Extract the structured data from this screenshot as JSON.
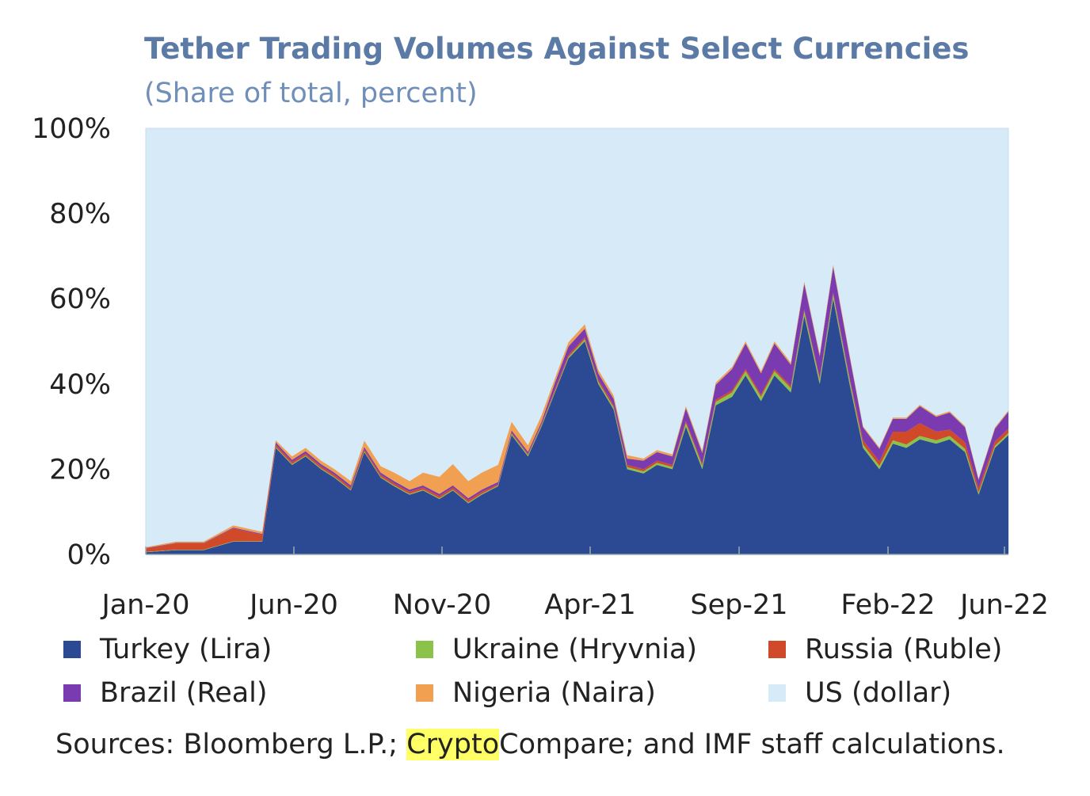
{
  "chart_data": {
    "type": "area",
    "stacked": true,
    "title": "Tether Trading Volumes Against Select Currencies",
    "subtitle": "(Share of total, percent)",
    "ylim": [
      0,
      100
    ],
    "y_ticks": [
      "0%",
      "20%",
      "40%",
      "60%",
      "80%",
      "100%"
    ],
    "x_ticks": [
      "Jan-20",
      "Jun-20",
      "Nov-20",
      "Apr-21",
      "Sep-21",
      "Feb-22",
      "Jun-22"
    ],
    "x": [
      "2020-01-01",
      "2020-02-01",
      "2020-03-01",
      "2020-04-01",
      "2020-05-01",
      "2020-05-15",
      "2020-06-01",
      "2020-06-15",
      "2020-07-01",
      "2020-07-15",
      "2020-08-01",
      "2020-08-15",
      "2020-09-01",
      "2020-09-15",
      "2020-10-01",
      "2020-10-15",
      "2020-11-01",
      "2020-11-15",
      "2020-12-01",
      "2020-12-15",
      "2021-01-01",
      "2021-01-15",
      "2021-02-01",
      "2021-02-15",
      "2021-03-01",
      "2021-03-15",
      "2021-04-01",
      "2021-04-15",
      "2021-05-01",
      "2021-05-15",
      "2021-06-01",
      "2021-06-15",
      "2021-07-01",
      "2021-07-15",
      "2021-08-01",
      "2021-08-15",
      "2021-09-01",
      "2021-09-15",
      "2021-10-01",
      "2021-10-15",
      "2021-11-01",
      "2021-11-15",
      "2021-12-01",
      "2021-12-15",
      "2022-01-01",
      "2022-01-15",
      "2022-02-01",
      "2022-02-15",
      "2022-03-01",
      "2022-03-15",
      "2022-04-01",
      "2022-04-15",
      "2022-05-01",
      "2022-05-15",
      "2022-06-01",
      "2022-06-15"
    ],
    "series": [
      {
        "name": "Turkey (Lira)",
        "color": "#2b4a93",
        "values": [
          0.5,
          1,
          1,
          3,
          3,
          25,
          21,
          23,
          20,
          18,
          15,
          24,
          18,
          16,
          14,
          15,
          13,
          15,
          12,
          14,
          16,
          28,
          23,
          30,
          38,
          46,
          50,
          40,
          34,
          20,
          19,
          21,
          20,
          30,
          20,
          35,
          37,
          42,
          36,
          42,
          38,
          56,
          40,
          60,
          40,
          25,
          20,
          26,
          25,
          27,
          26,
          27,
          24,
          14,
          25,
          28
        ]
      },
      {
        "name": "Ukraine (Hryvnia)",
        "color": "#8bc34a",
        "values": [
          0.1,
          0.1,
          0.1,
          0.1,
          0.1,
          0.2,
          0.2,
          0.2,
          0.2,
          0.2,
          0.2,
          0.2,
          0.2,
          0.2,
          0.2,
          0.2,
          0.2,
          0.2,
          0.2,
          0.2,
          0.2,
          0.3,
          0.3,
          0.3,
          0.3,
          0.3,
          0.5,
          0.5,
          0.5,
          0.5,
          0.5,
          0.5,
          0.5,
          0.8,
          0.8,
          0.8,
          1,
          1,
          1,
          1,
          1,
          1,
          1,
          1,
          1,
          0.8,
          0.8,
          0.8,
          0.8,
          0.8,
          0.8,
          0.8,
          0.8,
          0.5,
          0.5,
          0.5
        ]
      },
      {
        "name": "Russia (Ruble)",
        "color": "#d04a2a",
        "values": [
          0.8,
          1.5,
          1.5,
          3,
          1.5,
          0.6,
          0.5,
          0.5,
          0.5,
          0.5,
          0.5,
          0.5,
          0.5,
          0.5,
          0.5,
          0.5,
          0.5,
          0.5,
          0.5,
          0.5,
          0.3,
          0.3,
          0.3,
          0.3,
          0.5,
          0.5,
          0.5,
          0.5,
          0.5,
          0.5,
          0.5,
          0.5,
          0.5,
          0.5,
          0.5,
          0.5,
          0.5,
          0.5,
          0.5,
          0.5,
          0.5,
          0.5,
          0.5,
          0.5,
          0.5,
          1,
          1,
          2,
          3,
          3,
          2,
          1.5,
          1.5,
          1,
          1,
          1
        ]
      },
      {
        "name": "Brazil (Real)",
        "color": "#7a3ab0",
        "values": [
          0.1,
          0.1,
          0.1,
          0.2,
          0.2,
          0.5,
          0.5,
          0.5,
          0.5,
          0.5,
          0.5,
          0.5,
          0.5,
          0.5,
          0.5,
          0.5,
          0.5,
          0.5,
          0.5,
          0.5,
          0.5,
          0.5,
          0.5,
          0.5,
          1.5,
          2,
          2,
          1.5,
          1.5,
          1.5,
          2,
          2,
          2,
          3,
          2.5,
          3.5,
          5,
          6,
          5,
          6,
          5,
          6,
          5,
          6,
          5,
          3,
          3,
          3,
          3,
          4,
          3.5,
          4,
          3.5,
          2,
          3,
          4
        ]
      },
      {
        "name": "Nigeria (Naira)",
        "color": "#f0a050",
        "values": [
          0.2,
          0.3,
          0.3,
          0.5,
          0.5,
          0.5,
          0.8,
          0.8,
          0.8,
          0.8,
          1,
          1.5,
          1.5,
          2,
          2,
          3,
          4,
          5,
          4,
          4,
          4,
          2,
          1.5,
          1.5,
          1,
          1,
          1,
          0.8,
          0.8,
          0.8,
          0.5,
          0.5,
          0.5,
          0.5,
          0.5,
          0.5,
          0.5,
          0.5,
          0.5,
          0.5,
          0.5,
          0.5,
          0.5,
          0.5,
          0.5,
          0.3,
          0.3,
          0.3,
          0.3,
          0.3,
          0.3,
          0.3,
          0.3,
          0.3,
          0.3,
          0.3
        ]
      },
      {
        "name": "US (dollar)",
        "color": "#d6eaf8",
        "values": "remainder to 100"
      }
    ],
    "legend": {
      "placement": "bottom",
      "items": [
        {
          "label": "Turkey (Lira)",
          "color": "#2b4a93"
        },
        {
          "label": "Ukraine (Hryvnia)",
          "color": "#8bc34a"
        },
        {
          "label": "Russia (Ruble)",
          "color": "#d04a2a"
        },
        {
          "label": "Brazil (Real)",
          "color": "#7a3ab0"
        },
        {
          "label": "Nigeria (Naira)",
          "color": "#f0a050"
        },
        {
          "label": "US (dollar)",
          "color": "#d6eaf8"
        }
      ]
    }
  },
  "sources": {
    "prefix": "Sources: Bloomberg L.P.; ",
    "highlight": "Crypto",
    "suffix": "Compare; and IMF staff calculations."
  }
}
